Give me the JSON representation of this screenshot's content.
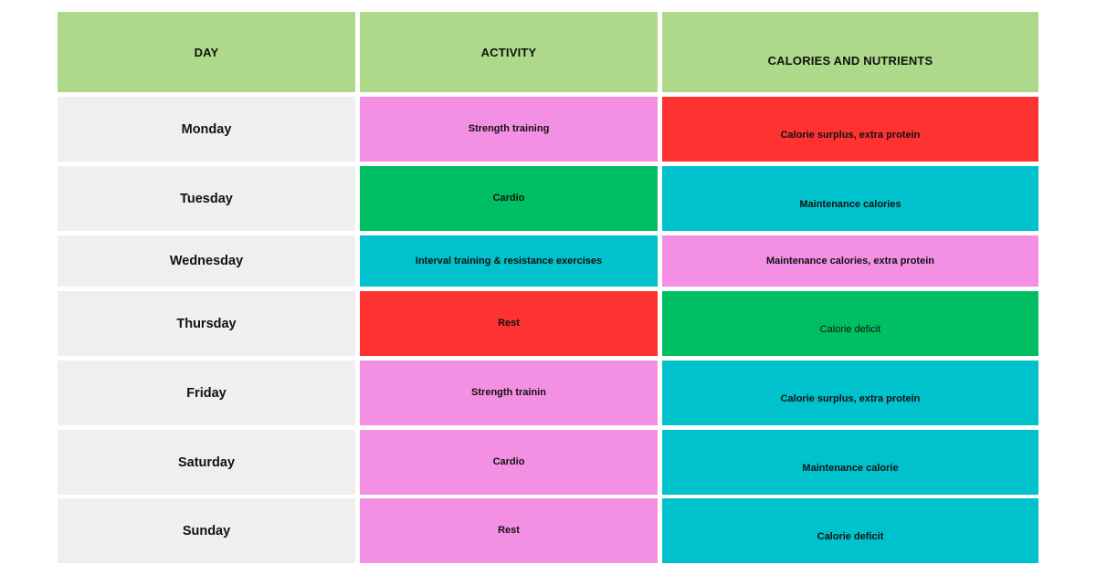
{
  "table": {
    "headers": {
      "day": "DAY",
      "activity": "ACTIVITY",
      "nutrients": "CALORIES AND NUTRIENTS"
    },
    "rows": [
      {
        "day": "Monday",
        "activity": "Strength training",
        "activity_color": "#f490e3",
        "nutrients": "Calorie surplus, extra protein",
        "nutrients_color": "#ff3232"
      },
      {
        "day": "Tuesday",
        "activity": "Cardio",
        "activity_color": "#00bf63",
        "nutrients": "Maintenance calories",
        "nutrients_color": "#00c2cc"
      },
      {
        "day": "Wednesday",
        "activity": "Interval training & resistance exercises",
        "activity_color": "#00c2cc",
        "nutrients": "Maintenance calories, extra protein",
        "nutrients_color": "#f490e3"
      },
      {
        "day": "Thursday",
        "activity": "Rest",
        "activity_color": "#ff3232",
        "nutrients": "Calorie deficit",
        "nutrients_color": "#00bf63"
      },
      {
        "day": "Friday",
        "activity": "Strength trainin",
        "activity_color": "#f490e3",
        "nutrients": "Calorie surplus, extra protein",
        "nutrients_color": "#00c2cc"
      },
      {
        "day": "Saturday",
        "activity": "Cardio",
        "activity_color": "#f490e3",
        "nutrients": "Maintenance calorie",
        "nutrients_color": "#00c2cc"
      },
      {
        "day": "Sunday",
        "activity": "Rest",
        "activity_color": "#f490e3",
        "nutrients": "Calorie deficit",
        "nutrients_color": "#00c2cc"
      }
    ]
  }
}
